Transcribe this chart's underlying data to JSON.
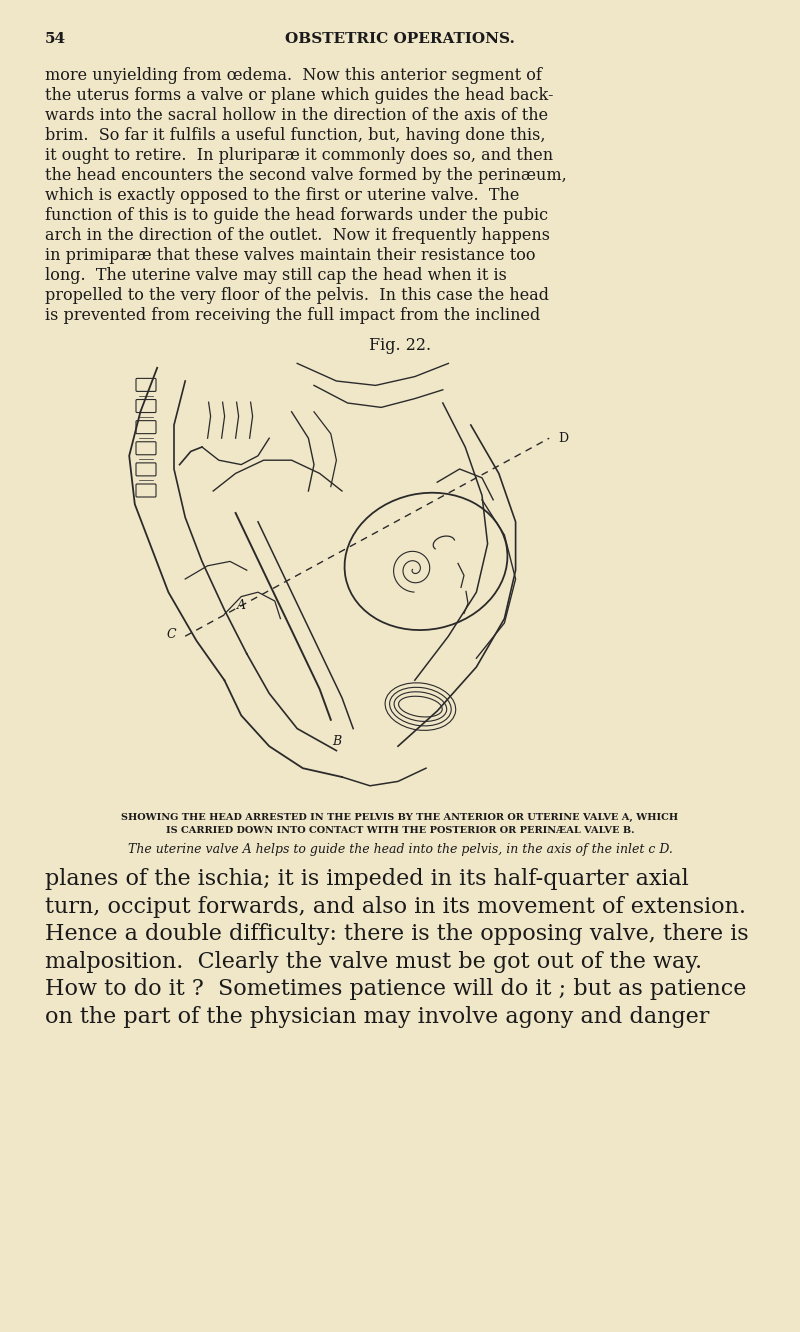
{
  "background_color": "#f0e6c8",
  "text_color": "#1a1a1a",
  "page_number": "54",
  "header": "OBSTETRIC OPERATIONS.",
  "caption1": "SHOWING THE HEAD ARRESTED IN THE PELVIS BY THE ANTERIOR OR UTERINE VALVE A, WHICH",
  "caption2": "IS CARRIED DOWN INTO CONTACT WITH THE POSTERIOR OR PERINÆAL VALVE B.",
  "caption3": "The uterine valve A helps to guide the head into the pelvis, in the axis of the inlet c D.",
  "fig_label": "Fig. 22.",
  "font_size_header": 11,
  "font_size_body": 11.5,
  "font_size_caption_upper": 7,
  "font_size_caption_lower": 9,
  "font_size_large": 16,
  "line_color": "#2a2a2a",
  "para1_lines": [
    "more unyielding from œdema.  Now this anterior segment of",
    "the uterus forms a valve or plane which guides the head back-",
    "wards into the sacral hollow in the direction of the axis of the",
    "brim.  So far it fulfils a useful function, but, having done this,",
    "it ought to retire.  In pluriparæ it commonly does so, and then",
    "the head encounters the second valve formed by the perinæum,",
    "which is exactly opposed to the first or uterine valve.  The",
    "function of this is to guide the head forwards under the pubic",
    "arch in the direction of the outlet.  Now it frequently happens",
    "in primiparæ that these valves maintain their resistance too",
    "long.  The uterine valve may still cap the head when it is",
    "propelled to the very floor of the pelvis.  In this case the head",
    "is prevented from receiving the full impact from the inclined"
  ],
  "para2_lines": [
    "planes of the ischia; it is impeded in its half-quarter axial",
    "turn, occiput forwards, and also in its movement of extension.",
    "Hence a double difficulty: there is the opposing valve, there is",
    "malposition.  Clearly the valve must be got out of the way.",
    "How to do it ?  Sometimes patience will do it ; but as patience",
    "on the part of the physician may involve agony and danger"
  ]
}
